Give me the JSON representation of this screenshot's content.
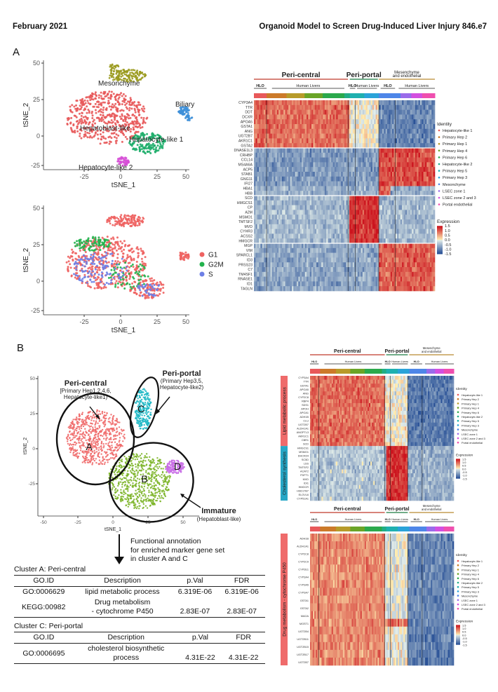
{
  "header": {
    "left": "February 2021",
    "right": "Organoid Model to Screen Drug-Induced Liver Injury   846.e7"
  },
  "panel_a": {
    "label": "A",
    "tsne_top": {
      "xlabel": "tSNE_1",
      "ylabel": "tSNE_2",
      "xticks": [
        "-25",
        "0",
        "25",
        "50"
      ],
      "yticks": [
        "50",
        "25",
        "0",
        "-25"
      ],
      "clusters": [
        {
          "name": "Mesonchyme",
          "color": "#9a9a1e"
        },
        {
          "name": "Biliary",
          "color": "#3d8fd8"
        },
        {
          "name": "Hepatoblast-like",
          "color": "#e8595a"
        },
        {
          "name": "Hepatocyte-like 1",
          "color": "#1fae6c"
        },
        {
          "name": "Hepatocyte-like 2",
          "color": "#d64fd6"
        }
      ]
    },
    "tsne_bottom": {
      "xlabel": "tSNE_1",
      "ylabel": "tSNE_2",
      "xticks": [
        "-25",
        "0",
        "25",
        "50"
      ],
      "yticks": [
        "50",
        "25",
        "0",
        "-25"
      ],
      "legend": [
        {
          "name": "G1",
          "color": "#ee6261"
        },
        {
          "name": "G2M",
          "color": "#22b24c"
        },
        {
          "name": "S",
          "color": "#6d7fe6"
        }
      ]
    },
    "heatmap": {
      "groups": [
        "Peri-central",
        "Peri-portal",
        "Mesenchyme\nand endothelial"
      ],
      "subgroups": [
        "HLO",
        "Human Livers",
        "HLO",
        "Human Livers",
        "HLO",
        "Human Livers"
      ],
      "genes": [
        "CYP3A4",
        "TTR",
        "DDT",
        "DCXR",
        "APOA5",
        "GSTA1",
        "ANG",
        "UGT2B7",
        "AKR1C1",
        "GSTA2",
        "DNASE1L3",
        "CRHBP",
        "CCL14",
        "MS4A6A",
        "ACP5",
        "STAB1",
        "GNG11",
        "IFI27",
        "HBA1",
        "HBB",
        "SCD",
        "HMGCS1",
        "CP",
        "A2M",
        "MSMO1",
        "TMTSF2",
        "MVD",
        "CYHR3",
        "ACSS2",
        "HMGCR",
        "MGP",
        "VIM",
        "SPARCL1",
        "ID3",
        "PRSS23",
        "C7",
        "TM4SF1",
        "RNASE1",
        "ID1",
        "TAGLN"
      ],
      "identity_title": "Identity",
      "identity": [
        {
          "name": "Hepatocyte-like 1",
          "color": "#e8595a"
        },
        {
          "name": "Primary Hep 2",
          "color": "#cc7a29"
        },
        {
          "name": "Primary Hep 1",
          "color": "#b79b2a"
        },
        {
          "name": "Primary Hep 4",
          "color": "#6aa427"
        },
        {
          "name": "Primary Hep 6",
          "color": "#2ba94c"
        },
        {
          "name": "Hepatocyte-like 2",
          "color": "#21ad86"
        },
        {
          "name": "Primary Hep 5",
          "color": "#1fb0b0"
        },
        {
          "name": "Primary Hep 3",
          "color": "#2aa3d9"
        },
        {
          "name": "Mesonchyme",
          "color": "#4e86e8"
        },
        {
          "name": "LSEC zone 1",
          "color": "#9a6bea"
        },
        {
          "name": "LSEC zone 2 and 3",
          "color": "#d34fe0"
        },
        {
          "name": "Portal endothelial",
          "color": "#ef4faf"
        }
      ],
      "expression_title": "Expression",
      "scale": [
        "1.5",
        "1.0",
        "0.5",
        "0.0",
        "-0.5",
        "-1.0",
        "-1.5"
      ]
    }
  },
  "panel_b": {
    "label": "B",
    "tsne": {
      "xlabel": "tSNE_1",
      "ylabel": "tSNE_2",
      "xticks": [
        "-50",
        "-25",
        "0",
        "25",
        "50"
      ],
      "yticks": [
        "50",
        "25",
        "0",
        "-25"
      ],
      "clusters": [
        {
          "letter": "A",
          "color": "#ef6a6a"
        },
        {
          "letter": "B",
          "color": "#7db52a"
        },
        {
          "letter": "C",
          "color": "#1fb8c5"
        },
        {
          "letter": "D",
          "color": "#c86ce6"
        }
      ],
      "annot_central_title": "Peri-central",
      "annot_central_sub": "[Primary Hep1,2,4,6,\nHepatocyte-like1)",
      "annot_portal_title": "Peri-portal",
      "annot_portal_sub": "(Primary Hep3,5,\nHepatocyte-like2)",
      "annot_immature_title": "Immature",
      "annot_immature_sub": "(Hepatoblast-like)"
    },
    "functional_annotation": "Functional annotation\nfor enriched marker gene set\nin cluster A and C",
    "cluster_a": {
      "title": "Cluster A: Peri-central",
      "headers": [
        "GO.ID",
        "Description",
        "p.Val",
        "FDR"
      ],
      "rows": [
        [
          "GO:0006629",
          "lipid metabolic process",
          "6.319E-06",
          "6.319E-06"
        ],
        [
          "KEGG:00982",
          "Drug metabolism\n- cytochrome P450",
          "2.83E-07",
          "2.83E-07"
        ]
      ]
    },
    "cluster_c": {
      "title": "Cluster C: Peri-portal",
      "headers": [
        "GO.ID",
        "Description",
        "p.Val",
        "FDR"
      ],
      "rows": [
        [
          "GO:0006695",
          "cholesterol biosynthetic\nprocess",
          "4.31E-22",
          "4.31E-22"
        ]
      ]
    },
    "heatmap_top": {
      "groups": [
        "Peri-central",
        "Peri-portal",
        "Mesenchyme\nand endothelial"
      ],
      "subgroups": [
        "HLO",
        "Human Livers",
        "HLO",
        "Human Livers",
        "HLO",
        "Human Livers"
      ],
      "side_labels": [
        "Lipid metabolic process",
        "Cholesterol synthesis"
      ],
      "genes": [
        "CYP3A4",
        "TTR",
        "GSTA1",
        "APOA5",
        "ANG",
        "CYP2C8",
        "RBP4",
        "SDS1",
        "APOH",
        "APOA1",
        "ADH1B",
        "CLU",
        "UGT2B7",
        "ALDH1A1",
        "ANGPTL3",
        "AKR1C1",
        "CBR1",
        "SCD",
        "HMGCS1",
        "MSMO1",
        "DHCR24",
        "SC5D",
        "LSS",
        "TMTSF2",
        "ACAT2",
        "FDFT1",
        "MVD",
        "IDI1",
        "HMGCR",
        "HSD17B7",
        "ELOVL6",
        "CYP51A1"
      ],
      "identity_title": "Identity",
      "expression_title": "Expression",
      "scale": [
        "1.5",
        "1.0",
        "0.5",
        "0.0",
        "-0.5",
        "-1.0",
        "-1.5"
      ]
    },
    "heatmap_bottom": {
      "groups": [
        "Peri-central",
        "Peri-portal",
        "Mesenchyme\nand endothelial"
      ],
      "subgroups": [
        "HLO",
        "Human Livers",
        "HLO",
        "Human Livers",
        "HLO",
        "Human Livers"
      ],
      "side_label": "Drug metabolism - cytochrome P450",
      "genes": [
        "ADH1B",
        "ALDH1A1",
        "CYP2C8",
        "CYP2C9",
        "CYP2E1",
        "CYP3A4",
        "CYP3A5",
        "CYP3A7",
        "GSTA1",
        "GSTA2",
        "MAOA",
        "MGST1",
        "UGT2B4",
        "UGT2B11",
        "UGT2B15",
        "UGT2B17",
        "UGT2B7"
      ],
      "identity_title": "Identity",
      "expression_title": "Expression",
      "scale": [
        "1.5",
        "1.0",
        "0.5",
        "0.0",
        "-0.5",
        "-1.0",
        "-1.5"
      ]
    }
  }
}
